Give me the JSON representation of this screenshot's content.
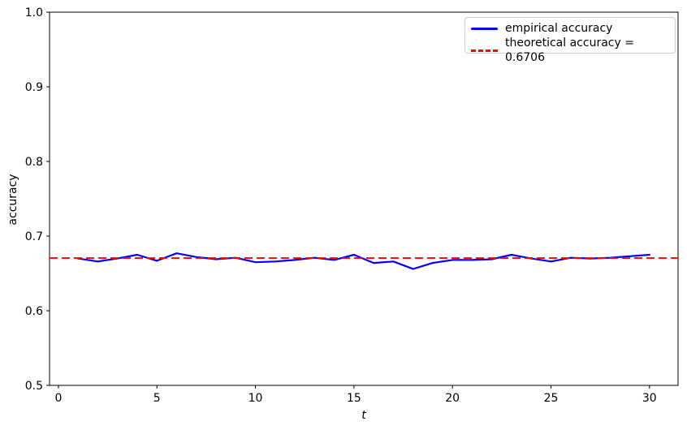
{
  "chart_data": {
    "type": "line",
    "title": "",
    "xlabel": "t",
    "ylabel": "accuracy",
    "xlim": [
      -0.45,
      31.45
    ],
    "ylim": [
      0.5,
      1.0
    ],
    "xticks": [
      0,
      5,
      10,
      15,
      20,
      25,
      30
    ],
    "yticks": [
      "0.5",
      "0.6",
      "0.7",
      "0.8",
      "0.9",
      "1.0"
    ],
    "grid": false,
    "legend_position": "upper right",
    "colors": {
      "empirical": "#0000ff",
      "theoretical": "#ff0000",
      "axes": "#000000",
      "legend_border": "#cccccc"
    },
    "series": [
      {
        "name": "empirical accuracy",
        "color": "#0000ff",
        "style": "solid",
        "x": [
          1,
          2,
          3,
          4,
          5,
          6,
          7,
          8,
          9,
          10,
          11,
          12,
          13,
          14,
          15,
          16,
          17,
          18,
          19,
          20,
          21,
          22,
          23,
          24,
          25,
          26,
          27,
          28,
          29,
          30
        ],
        "y": [
          0.67,
          0.666,
          0.67,
          0.675,
          0.667,
          0.677,
          0.672,
          0.669,
          0.671,
          0.665,
          0.666,
          0.668,
          0.671,
          0.668,
          0.675,
          0.664,
          0.666,
          0.656,
          0.664,
          0.668,
          0.668,
          0.669,
          0.675,
          0.67,
          0.666,
          0.671,
          0.67,
          0.671,
          0.673,
          0.675
        ]
      },
      {
        "name": "theoretical accuracy = 0.6706",
        "color": "#ff0000",
        "style": "dashed",
        "kind": "hline",
        "value": 0.6706
      }
    ]
  }
}
